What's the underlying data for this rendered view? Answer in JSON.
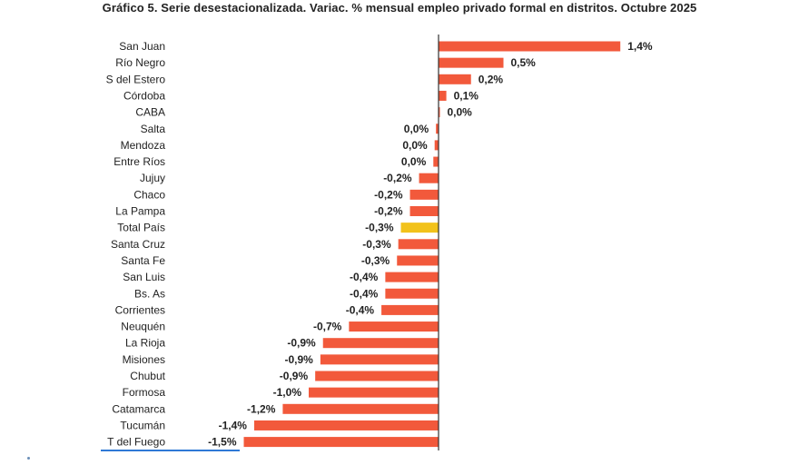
{
  "chart_data": {
    "type": "bar",
    "orientation": "horizontal",
    "title": "Gráfico 5. Serie desestacionalizada. Variac. % mensual empleo privado formal en distritos. Octubre 2025",
    "xlabel": "",
    "ylabel": "",
    "xlim": [
      -1.5,
      1.4
    ],
    "categories": [
      "San Juan",
      "Río Negro",
      "S del Estero",
      "Córdoba",
      "CABA",
      "Salta",
      "Mendoza",
      "Entre Ríos",
      "Jujuy",
      "Chaco",
      "La Pampa",
      "Total País",
      "Santa Cruz",
      "Santa Fe",
      "San Luis",
      "Bs. As",
      "Corrientes",
      "Neuquén",
      "La Rioja",
      "Misiones",
      "Chubut",
      "Formosa",
      "Catamarca",
      "Tucumán",
      "T del Fuego"
    ],
    "values": [
      1.4,
      0.5,
      0.25,
      0.06,
      0.01,
      -0.02,
      -0.03,
      -0.04,
      -0.15,
      -0.22,
      -0.22,
      -0.29,
      -0.31,
      -0.32,
      -0.41,
      -0.41,
      -0.44,
      -0.69,
      -0.89,
      -0.91,
      -0.95,
      -1.0,
      -1.2,
      -1.42,
      -1.5
    ],
    "value_labels": [
      "1,4%",
      "0,5%",
      "0,2%",
      "0,1%",
      "0,0%",
      "0,0%",
      "0,0%",
      "0,0%",
      "-0,2%",
      "-0,2%",
      "-0,2%",
      "-0,3%",
      "-0,3%",
      "-0,3%",
      "-0,4%",
      "-0,4%",
      "-0,4%",
      "-0,7%",
      "-0,9%",
      "-0,9%",
      "-0,9%",
      "-1,0%",
      "-1,2%",
      "-1,4%",
      "-1,5%"
    ],
    "highlight_category": "Total País",
    "grid": false,
    "legend": false
  },
  "colors": {
    "bar": "#f2593b",
    "highlight": "#f2c21b",
    "axis": "#333333",
    "underline": "#2f79d6"
  }
}
